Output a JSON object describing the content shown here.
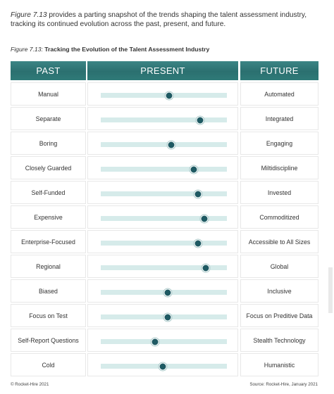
{
  "intro": {
    "figure_ref": "Figure 7.13",
    "text": " provides a parting snapshot of the trends shaping the talent assessment industry, tracking its continued evolution across the past, present, and future."
  },
  "caption": {
    "figure_ref": "Figure 7.13:",
    "title": "Tracking the Evolution of the Talent Assessment Industry"
  },
  "headers": {
    "past": "PAST",
    "present": "PRESENT",
    "future": "FUTURE"
  },
  "colors": {
    "header": "#2b7070",
    "track": "#d6ebea",
    "marker": "#1f5a63"
  },
  "rows": [
    {
      "past": "Manual",
      "future": "Automated",
      "position": 0.54
    },
    {
      "past": "Separate",
      "future": "Integrated",
      "position": 0.79
    },
    {
      "past": "Boring",
      "future": "Engaging",
      "position": 0.56
    },
    {
      "past": "Closely Guarded",
      "future": "Miltidiscipline",
      "position": 0.74
    },
    {
      "past": "Self-Funded",
      "future": "Invested",
      "position": 0.77
    },
    {
      "past": "Expensive",
      "future": "Commoditized",
      "position": 0.82
    },
    {
      "past": "Enterprise-Focused",
      "future": "Accessible to All Sizes",
      "position": 0.77
    },
    {
      "past": "Regional",
      "future": "Global",
      "position": 0.83
    },
    {
      "past": "Biased",
      "future": "Inclusive",
      "position": 0.53
    },
    {
      "past": "Focus on Test",
      "future": "Focus on Preditive Data",
      "position": 0.53
    },
    {
      "past": "Self-Report Questions",
      "future": "Stealth Technology",
      "position": 0.43
    },
    {
      "past": "Cold",
      "future": "Humanistic",
      "position": 0.49
    }
  ],
  "footer": {
    "copyright": "© Rocket-Hire 2021",
    "source": "Source: Rocket-Hire, January 2021"
  }
}
